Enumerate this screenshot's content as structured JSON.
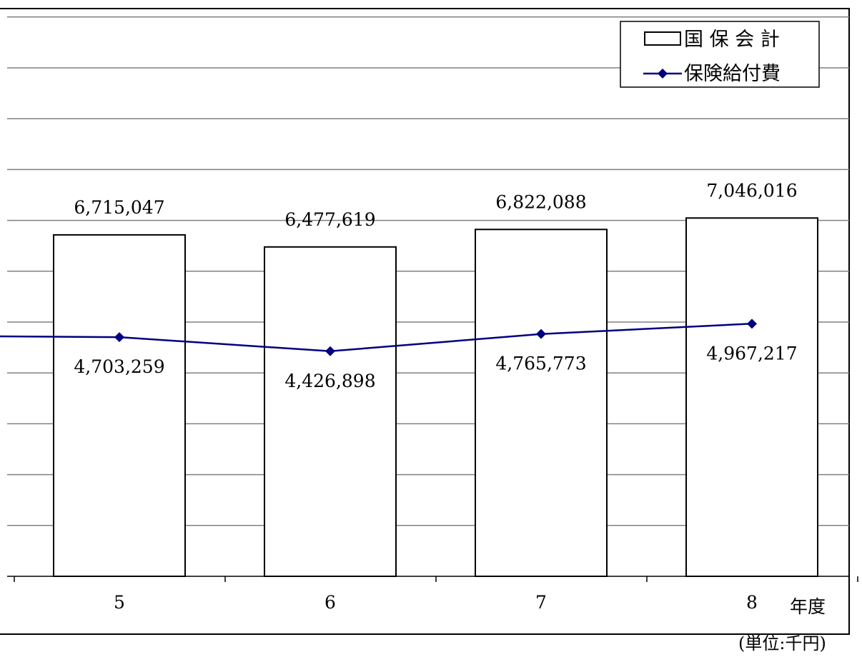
{
  "chart_data": {
    "type": "bar",
    "title": "",
    "xlabel": "年度",
    "ylabel": "",
    "unit_note": "(単位:千円)",
    "categories": [
      "5",
      "6",
      "7",
      "8"
    ],
    "series": [
      {
        "name": "国 保 会 計",
        "type": "bar",
        "values": [
          6715047,
          6477619,
          6822088,
          7046016
        ],
        "labels": [
          "6,715,047",
          "6,477,619",
          "6,822,088",
          "7,046,016"
        ]
      },
      {
        "name": "保険給付費",
        "type": "line",
        "values": [
          4703259,
          4426898,
          4765773,
          4967217
        ],
        "labels": [
          "4,703,259",
          "4,426,898",
          "4,765,773",
          "4,967,217"
        ]
      }
    ],
    "ylim": [
      0,
      11000000
    ],
    "y_gridline_step": 1000000,
    "grid": true,
    "legend_position": "top-right",
    "colors": {
      "bar_fill": "#ffffff",
      "bar_stroke": "#000000",
      "line": "#000080",
      "grid": "#808080",
      "axis": "#000000"
    }
  }
}
